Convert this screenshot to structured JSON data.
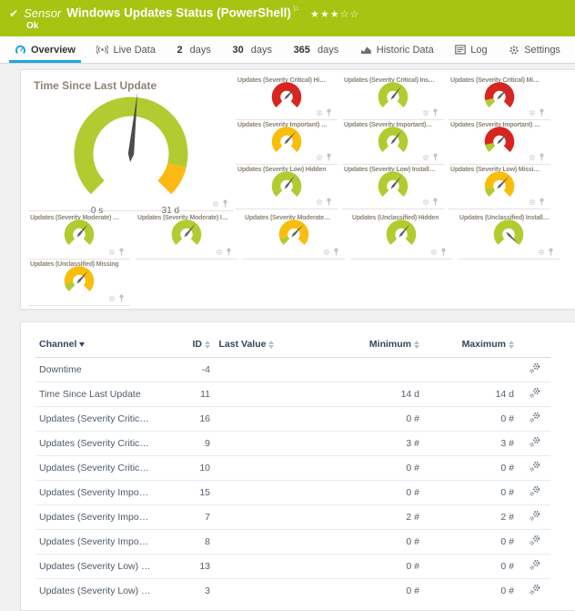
{
  "colors": {
    "green": "#a7c412",
    "blue": "#1ea6dc",
    "gauge_green": "#b2cb30",
    "gauge_yellow": "#f9be0b",
    "gauge_orange": "#fcb913",
    "gauge_red": "#d9251f"
  },
  "header": {
    "type_label": "Sensor",
    "title": "Windows Updates Status (PowerShell)",
    "status_text": "Ok",
    "rating_filled": 3,
    "rating_total": 5
  },
  "tabs": [
    {
      "label": "Overview",
      "icon": "gauge",
      "active": true
    },
    {
      "label": "Live Data",
      "icon": "broadcast",
      "active": false
    },
    {
      "label": "2 days",
      "icon": null,
      "active": false
    },
    {
      "label": "30 days",
      "icon": null,
      "active": false
    },
    {
      "label": "365 days",
      "icon": null,
      "active": false
    },
    {
      "label": "Historic Data",
      "icon": "chart",
      "active": false
    },
    {
      "label": "Log",
      "icon": "log",
      "active": false
    },
    {
      "label": "Settings",
      "icon": "gear",
      "active": false
    }
  ],
  "gauge_panel": {
    "main": {
      "title": "Time Since Last Update",
      "min_label": "0 s",
      "max_label": "31 d",
      "segments": [
        {
          "color": "#b2cb30",
          "frac": 0.885
        },
        {
          "color": "#fcb913",
          "frac": 0.115
        }
      ],
      "needle_deg": 6
    },
    "small_right": [
      {
        "title": "Updates (Severity Critical) Hi…",
        "segments": [
          {
            "color": "#d9251f",
            "frac": 1
          }
        ],
        "needle_deg": 44
      },
      {
        "title": "Updates (Severity Critical) Ins…",
        "segments": [
          {
            "color": "#b2cb30",
            "frac": 1
          }
        ],
        "needle_deg": 38
      },
      {
        "title": "Updates (Severity Critical) Mi…",
        "segments": [
          {
            "color": "#b2cb30",
            "frac": 0.12
          },
          {
            "color": "#d9251f",
            "frac": 0.88
          }
        ],
        "needle_deg": 44
      },
      {
        "title": "Updates (Severity Important) …",
        "segments": [
          {
            "color": "#f9be0b",
            "frac": 1
          }
        ],
        "needle_deg": 43
      },
      {
        "title": "Updates (Severity Important)…",
        "segments": [
          {
            "color": "#b2cb30",
            "frac": 1
          }
        ],
        "needle_deg": 38
      },
      {
        "title": "Updates (Severity Important) …",
        "segments": [
          {
            "color": "#b2cb30",
            "frac": 0.12
          },
          {
            "color": "#d9251f",
            "frac": 0.88
          }
        ],
        "needle_deg": 44
      },
      {
        "title": "Updates (Severity Low) Hidden",
        "segments": [
          {
            "color": "#b2cb30",
            "frac": 1
          }
        ],
        "needle_deg": 38
      },
      {
        "title": "Updates (Severity Low) Install…",
        "segments": [
          {
            "color": "#b2cb30",
            "frac": 1
          }
        ],
        "needle_deg": 40
      },
      {
        "title": "Updates (Severity Low) Missi…",
        "segments": [
          {
            "color": "#b2cb30",
            "frac": 0.13
          },
          {
            "color": "#f9be0b",
            "frac": 0.87
          }
        ],
        "needle_deg": 44
      }
    ],
    "small_bottom": [
      {
        "title": "Updates (Severity Moderate) …",
        "segments": [
          {
            "color": "#b2cb30",
            "frac": 1
          }
        ],
        "needle_deg": 40
      },
      {
        "title": "Updates (Severity Moderate) I…",
        "segments": [
          {
            "color": "#b2cb30",
            "frac": 1
          }
        ],
        "needle_deg": 40
      },
      {
        "title": "Updates (Severity Moderate…",
        "segments": [
          {
            "color": "#b2cb30",
            "frac": 0.1
          },
          {
            "color": "#f9be0b",
            "frac": 0.9
          }
        ],
        "needle_deg": 44
      },
      {
        "title": "Updates (Unclassified) Hidden",
        "segments": [
          {
            "color": "#b2cb30",
            "frac": 1
          }
        ],
        "needle_deg": 40
      },
      {
        "title": "Updates (Unclassified) Install…",
        "segments": [
          {
            "color": "#b2cb30",
            "frac": 1
          }
        ],
        "needle_deg": 135
      },
      {
        "title": "Updates (Unclassified) Missing",
        "segments": [
          {
            "color": "#b2cb30",
            "frac": 0.13
          },
          {
            "color": "#f9be0b",
            "frac": 0.87
          }
        ],
        "needle_deg": 42
      }
    ]
  },
  "table": {
    "columns": [
      {
        "label": "Channel",
        "sort": "desc",
        "align": "left"
      },
      {
        "label": "ID",
        "sort": "both",
        "align": "right"
      },
      {
        "label": "Last Value",
        "sort": "both",
        "align": "center"
      },
      {
        "label": "Minimum",
        "sort": "both",
        "align": "right"
      },
      {
        "label": "Maximum",
        "sort": "both",
        "align": "right"
      },
      {
        "label": "",
        "sort": "none",
        "align": "center"
      }
    ],
    "rows": [
      {
        "channel": "Downtime",
        "id": "-4",
        "last": "",
        "min": "",
        "max": ""
      },
      {
        "channel": "Time Since Last Update",
        "id": "11",
        "last": "",
        "min": "14 d",
        "max": "14 d"
      },
      {
        "channel": "Updates (Severity Critic…",
        "id": "16",
        "last": "",
        "min": "0 #",
        "max": "0 #"
      },
      {
        "channel": "Updates (Severity Critic…",
        "id": "9",
        "last": "",
        "min": "3 #",
        "max": "3 #"
      },
      {
        "channel": "Updates (Severity Critic…",
        "id": "10",
        "last": "",
        "min": "0 #",
        "max": "0 #"
      },
      {
        "channel": "Updates (Severity Impo…",
        "id": "15",
        "last": "",
        "min": "0 #",
        "max": "0 #"
      },
      {
        "channel": "Updates (Severity Impo…",
        "id": "7",
        "last": "",
        "min": "2 #",
        "max": "2 #"
      },
      {
        "channel": "Updates (Severity Impo…",
        "id": "8",
        "last": "",
        "min": "0 #",
        "max": "0 #"
      },
      {
        "channel": "Updates (Severity Low) …",
        "id": "13",
        "last": "",
        "min": "0 #",
        "max": "0 #"
      },
      {
        "channel": "Updates (Severity Low) …",
        "id": "3",
        "last": "",
        "min": "0 #",
        "max": "0 #"
      }
    ]
  }
}
